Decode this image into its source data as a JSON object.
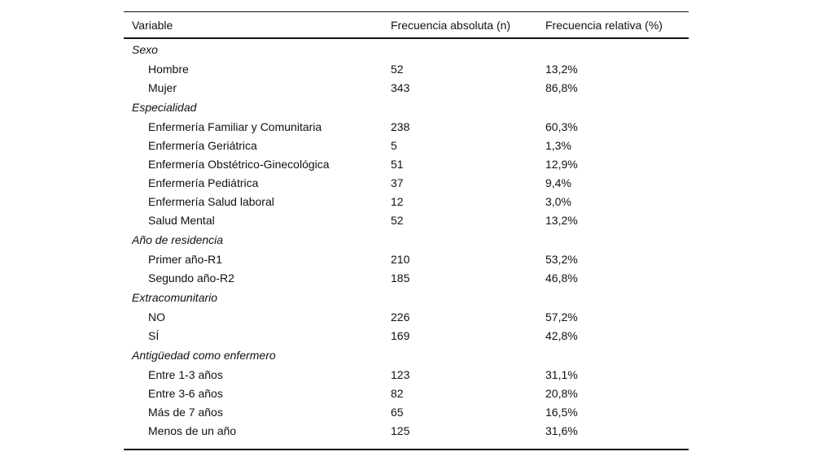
{
  "table": {
    "columns": [
      "Variable",
      "Frecuencia absoluta (n)",
      "Frecuencia relativa (%)"
    ],
    "sections": [
      {
        "label": "Sexo",
        "rows": [
          {
            "variable": "Hombre",
            "n": "52",
            "pct": "13,2%"
          },
          {
            "variable": "Mujer",
            "n": "343",
            "pct": "86,8%"
          }
        ]
      },
      {
        "label": "Especialidad",
        "rows": [
          {
            "variable": "Enfermería Familiar y Comunitaria",
            "n": "238",
            "pct": "60,3%"
          },
          {
            "variable": "Enfermería Geriátrica",
            "n": "5",
            "pct": "1,3%"
          },
          {
            "variable": "Enfermería Obstétrico-Ginecológica",
            "n": "51",
            "pct": "12,9%"
          },
          {
            "variable": "Enfermería Pediátrica",
            "n": "37",
            "pct": "9,4%"
          },
          {
            "variable": "Enfermería Salud laboral",
            "n": "12",
            "pct": "3,0%"
          },
          {
            "variable": "Salud Mental",
            "n": "52",
            "pct": "13,2%"
          }
        ]
      },
      {
        "label": "Año de residencia",
        "rows": [
          {
            "variable": "Primer año-R1",
            "n": "210",
            "pct": "53,2%"
          },
          {
            "variable": "Segundo año-R2",
            "n": "185",
            "pct": "46,8%"
          }
        ]
      },
      {
        "label": "Extracomunitario",
        "rows": [
          {
            "variable": "NO",
            "n": "226",
            "pct": "57,2%"
          },
          {
            "variable": "SÍ",
            "n": "169",
            "pct": "42,8%"
          }
        ]
      },
      {
        "label": "Antigüedad como enfermero",
        "rows": [
          {
            "variable": "Entre 1-3 años",
            "n": "123",
            "pct": "31,1%"
          },
          {
            "variable": "Entre 3-6 años",
            "n": "82",
            "pct": "20,8%"
          },
          {
            "variable": "Más de 7 años",
            "n": "65",
            "pct": "16,5%"
          },
          {
            "variable": "Menos de un año",
            "n": "125",
            "pct": "31,6%"
          }
        ]
      }
    ]
  }
}
